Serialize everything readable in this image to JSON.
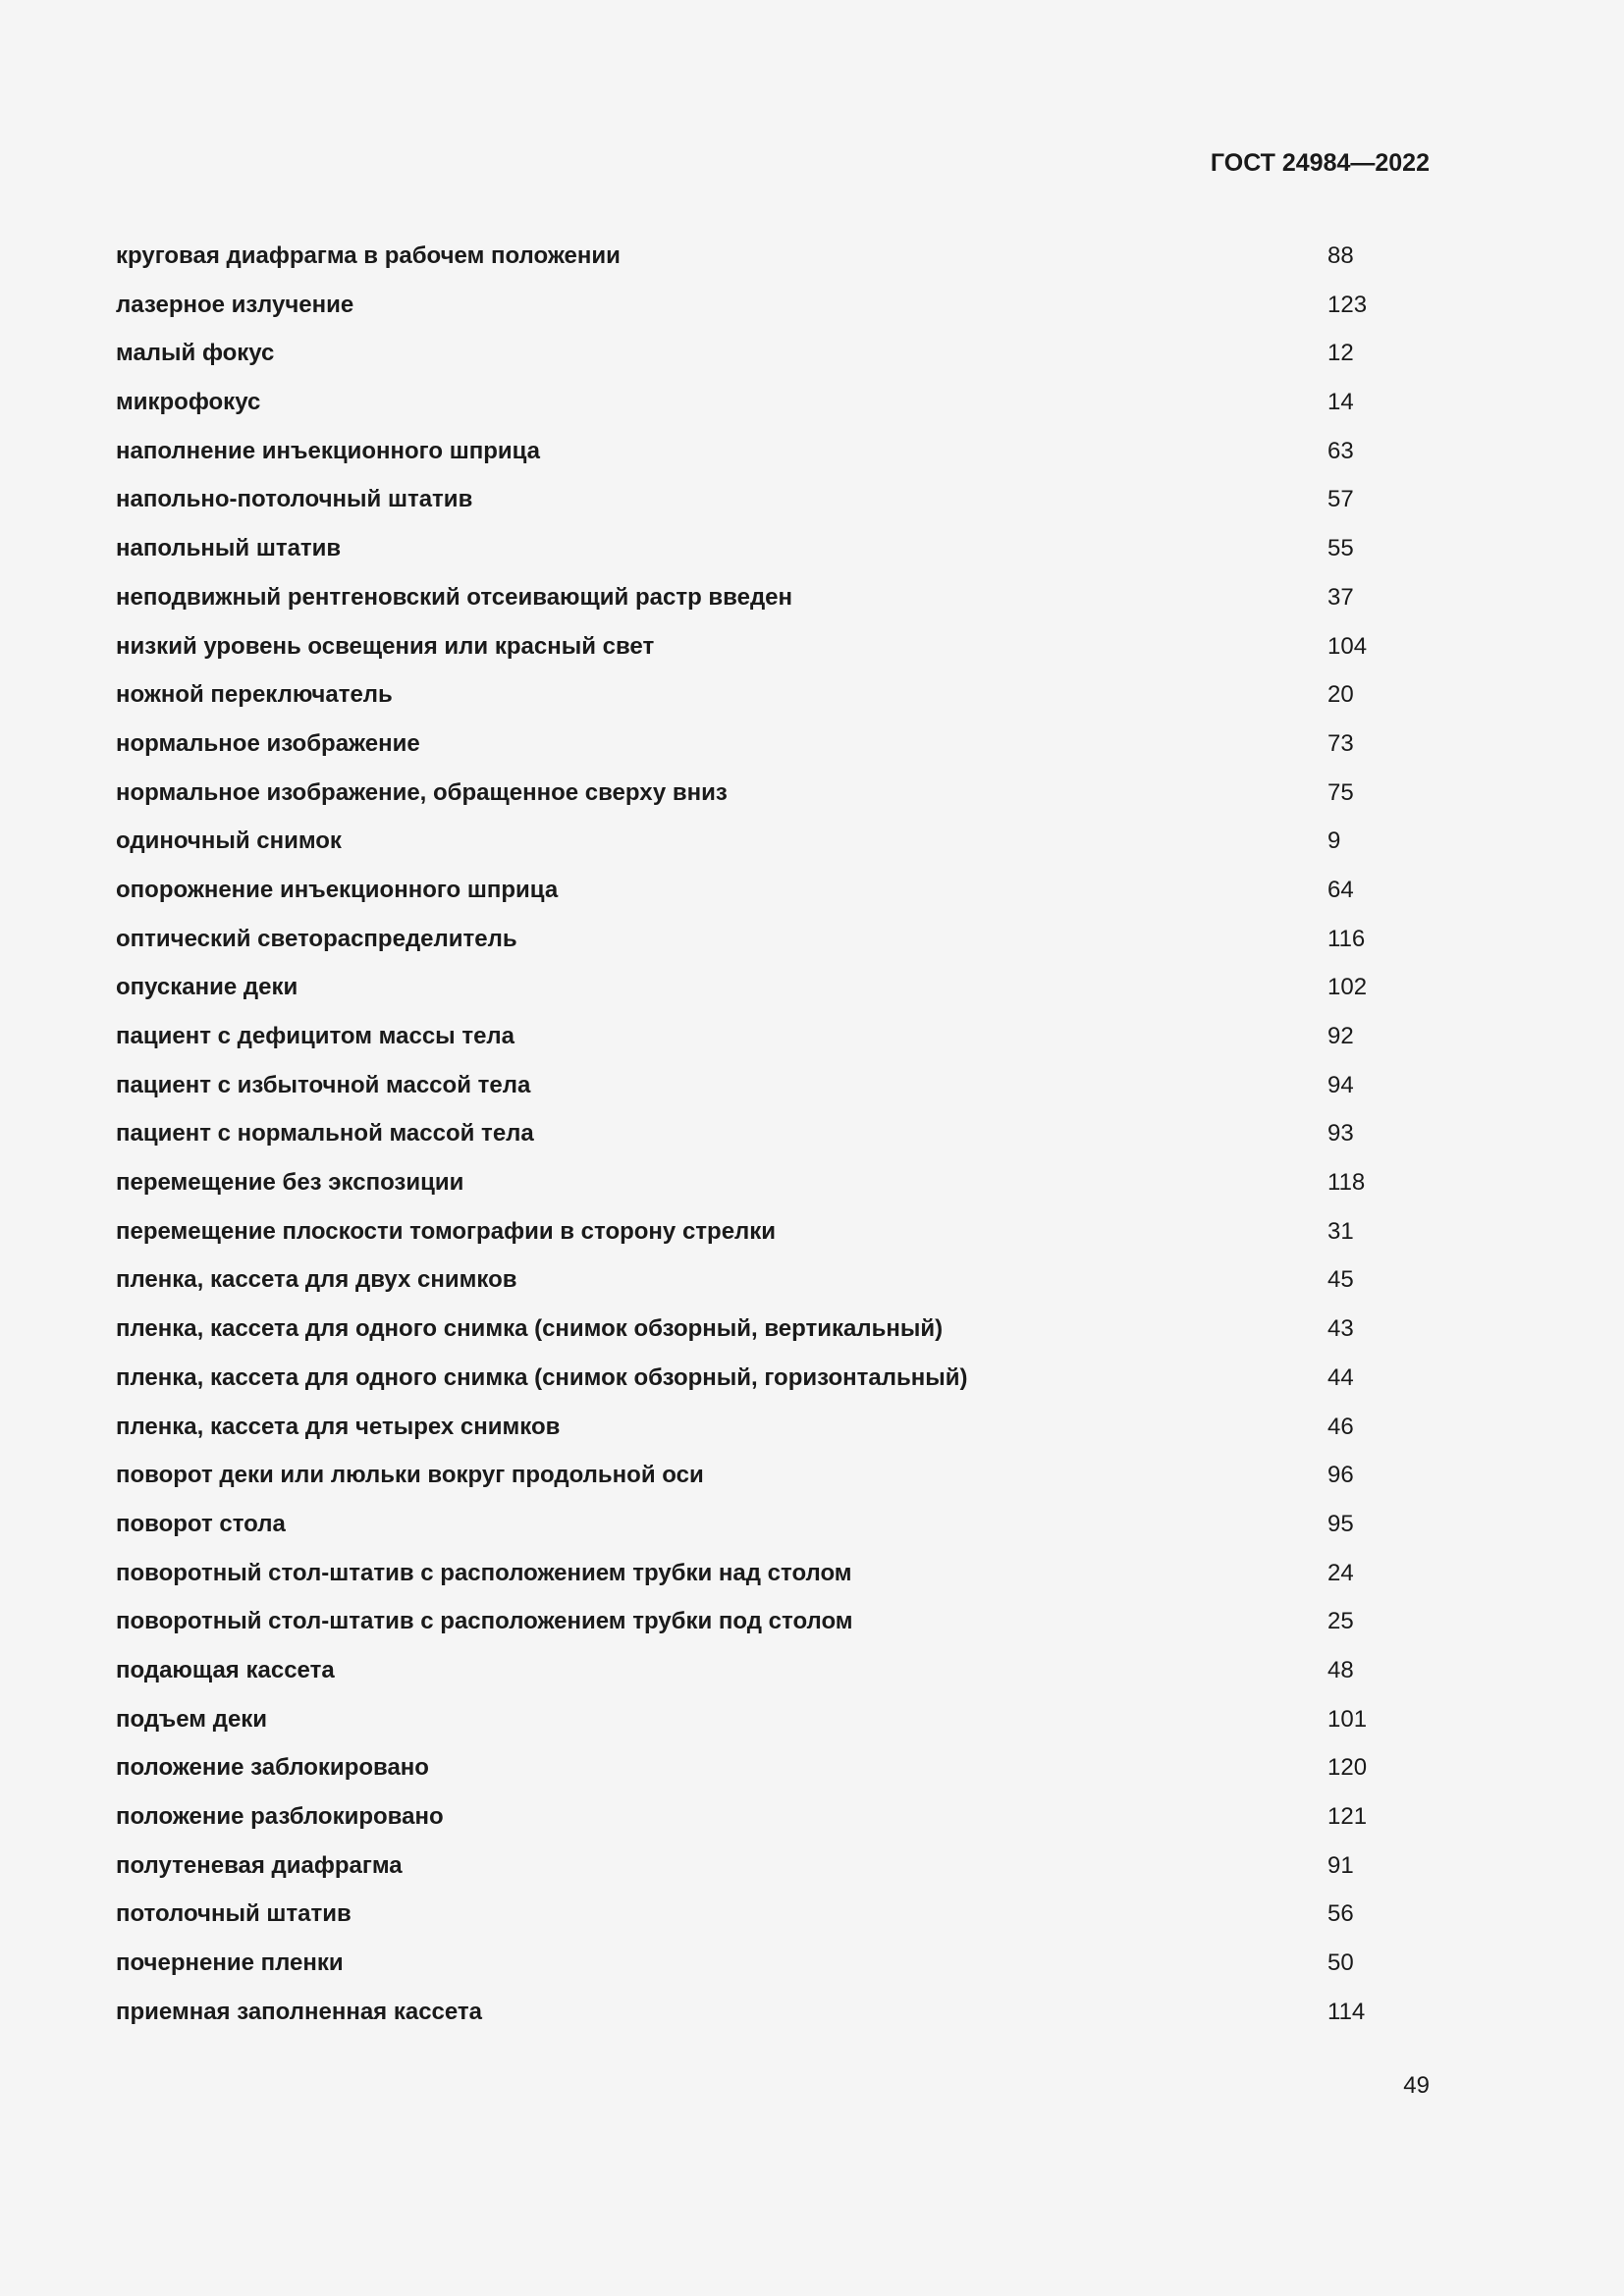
{
  "header": {
    "doc_code": "ГОСТ 24984—2022"
  },
  "entries": [
    {
      "term": "круговая диафрагма в рабочем положении",
      "num": "88"
    },
    {
      "term": "лазерное излучение",
      "num": "123"
    },
    {
      "term": "малый фокус",
      "num": "12"
    },
    {
      "term": "микрофокус",
      "num": "14"
    },
    {
      "term": "наполнение инъекционного шприца",
      "num": "63"
    },
    {
      "term": "напольно-потолочный штатив",
      "num": "57"
    },
    {
      "term": "напольный штатив",
      "num": "55"
    },
    {
      "term": "неподвижный рентгеновский отсеивающий растр введен",
      "num": "37"
    },
    {
      "term": "низкий уровень освещения или красный свет",
      "num": "104"
    },
    {
      "term": "ножной переключатель",
      "num": "20"
    },
    {
      "term": "нормальное изображение",
      "num": "73"
    },
    {
      "term": "нормальное изображение, обращенное сверху вниз",
      "num": "75"
    },
    {
      "term": "одиночный снимок",
      "num": "9"
    },
    {
      "term": "опорожнение инъекционного шприца",
      "num": "64"
    },
    {
      "term": "оптический светораспределитель",
      "num": "116"
    },
    {
      "term": "опускание деки",
      "num": "102"
    },
    {
      "term": "пациент с дефицитом массы тела",
      "num": "92"
    },
    {
      "term": "пациент с избыточной массой тела",
      "num": "94"
    },
    {
      "term": "пациент с нормальной массой тела",
      "num": "93"
    },
    {
      "term": "перемещение без экспозиции",
      "num": "118"
    },
    {
      "term": "перемещение плоскости томографии в сторону стрелки",
      "num": "31"
    },
    {
      "term": "пленка, кассета для двух снимков",
      "num": "45"
    },
    {
      "term": "пленка, кассета для одного снимка (снимок обзорный, вертикальный)",
      "num": "43"
    },
    {
      "term": "пленка, кассета для одного снимка (снимок обзорный, горизонтальный)",
      "num": "44"
    },
    {
      "term": "пленка, кассета для четырех снимков",
      "num": "46"
    },
    {
      "term": "поворот деки или люльки вокруг продольной оси",
      "num": "96"
    },
    {
      "term": "поворот стола",
      "num": "95"
    },
    {
      "term": "поворотный стол-штатив с расположением трубки над столом",
      "num": "24"
    },
    {
      "term": "поворотный стол-штатив с расположением трубки под столом",
      "num": "25"
    },
    {
      "term": "подающая кассета",
      "num": "48"
    },
    {
      "term": "подъем деки",
      "num": "101"
    },
    {
      "term": "положение заблокировано",
      "num": "120"
    },
    {
      "term": "положение разблокировано",
      "num": "121"
    },
    {
      "term": "полутеневая диафрагма",
      "num": "91"
    },
    {
      "term": "потолочный штатив",
      "num": "56"
    },
    {
      "term": "почернение пленки",
      "num": "50"
    },
    {
      "term": "приемная заполненная кассета",
      "num": "114"
    }
  ],
  "footer": {
    "page_number": "49"
  }
}
